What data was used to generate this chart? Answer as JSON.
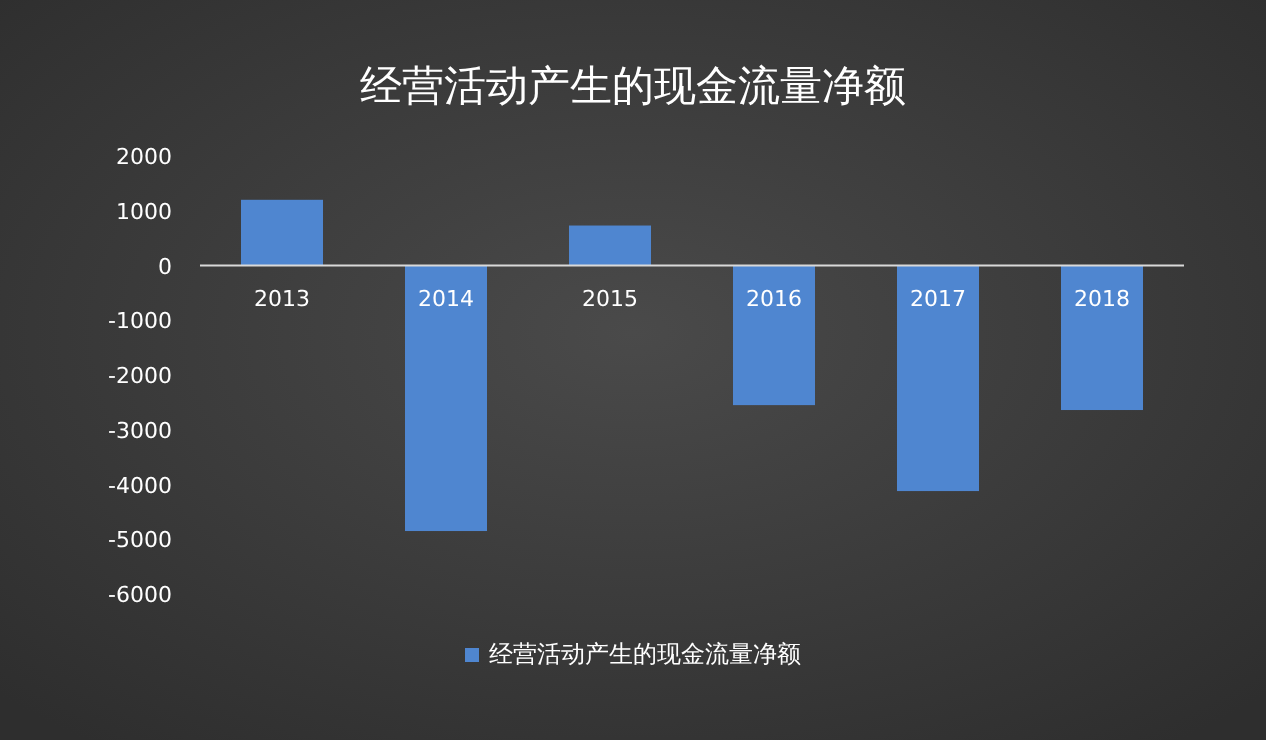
{
  "chart_data": {
    "type": "bar",
    "title": "经营活动产生的现金流量净额",
    "categories": [
      "2013",
      "2014",
      "2015",
      "2016",
      "2017",
      "2018"
    ],
    "series": [
      {
        "name": "经营活动产生的现金流量净额",
        "color": "#4f86d0",
        "values": [
          1200,
          -4850,
          730,
          -2550,
          -4120,
          -2640
        ]
      }
    ],
    "ylim": [
      -6000,
      2000
    ],
    "yticks": [
      -6000,
      -5000,
      -4000,
      -3000,
      -2000,
      -1000,
      0,
      1000,
      2000
    ],
    "legend": "bottom"
  }
}
